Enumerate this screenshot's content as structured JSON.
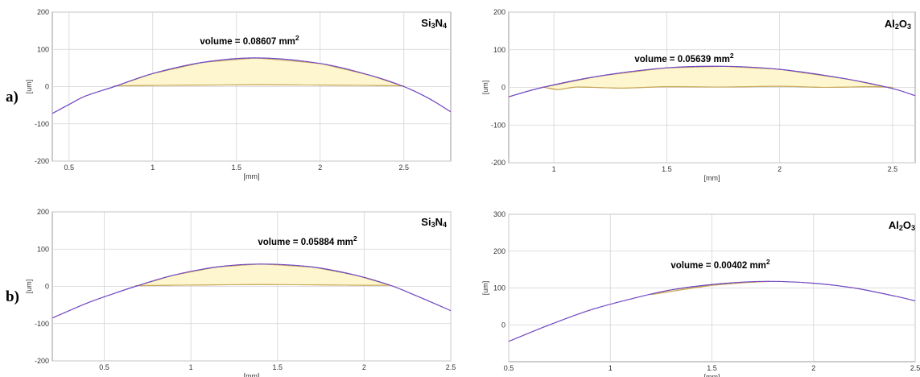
{
  "row_labels": [
    "a)",
    "b)"
  ],
  "colors": {
    "fill": "#fdf6cf",
    "outline": "#c8a85a",
    "profile_blue": "#4a4ad0",
    "profile_magenta": "#d040a0",
    "grid": "#d4d4d4",
    "frame": "#9a9a9a"
  },
  "chart_data": [
    {
      "type": "area",
      "row_label": "a)",
      "material_main": "Si",
      "material_sub1": "3",
      "material_mid": "N",
      "material_sub2": "4",
      "volume_label": "volume = 0.08607 mm",
      "volume_sup": "2",
      "xlabel": "[mm]",
      "ylabel": "[um]",
      "xlim": [
        0.4,
        2.78
      ],
      "ylim": [
        -200,
        200
      ],
      "xticks": [
        0.5,
        1,
        1.5,
        2,
        2.5
      ],
      "xtick_labels": [
        "0.5",
        "1",
        "1.5",
        "2",
        "2.5"
      ],
      "yticks": [
        -200,
        -100,
        0,
        100,
        200
      ],
      "ytick_labels": [
        "-200",
        "-100",
        "0",
        "100",
        "200"
      ],
      "profile_x": [
        0.4,
        0.5,
        0.6,
        0.77,
        1.0,
        1.3,
        1.62,
        2.0,
        2.3,
        2.5,
        2.65,
        2.78
      ],
      "profile_y": [
        -72,
        -48,
        -25,
        0,
        35,
        65,
        77,
        62,
        30,
        0,
        -32,
        -68
      ],
      "wear_x": [
        0.77,
        1.0,
        1.3,
        1.62,
        2.0,
        2.3,
        2.5
      ],
      "wear_y": [
        2,
        3,
        4,
        5,
        4,
        3,
        2
      ],
      "grid": true
    },
    {
      "type": "area",
      "row_label": "a)",
      "material_main": "Al",
      "material_sub1": "2",
      "material_mid": "O",
      "material_sub2": "3",
      "volume_label": "volume = 0.05639 mm",
      "volume_sup": "2",
      "xlabel": "[mm]",
      "ylabel": "[um]",
      "xlim": [
        0.8,
        2.6
      ],
      "ylim": [
        -200,
        200
      ],
      "xticks": [
        1,
        1.5,
        2,
        2.5
      ],
      "xtick_labels": [
        "1",
        "1.5",
        "2",
        "2.5"
      ],
      "yticks": [
        -200,
        -100,
        0,
        100,
        200
      ],
      "ytick_labels": [
        "-200",
        "-100",
        "0",
        "100",
        "200"
      ],
      "profile_x": [
        0.8,
        0.95,
        1.2,
        1.5,
        1.75,
        2.0,
        2.3,
        2.5,
        2.6
      ],
      "profile_y": [
        -25,
        0,
        30,
        52,
        56,
        48,
        22,
        -3,
        -22
      ],
      "wear_x": [
        0.95,
        1.02,
        1.1,
        1.3,
        1.5,
        1.75,
        2.0,
        2.2,
        2.4,
        2.5
      ],
      "wear_y": [
        1,
        -6,
        1,
        -2,
        2,
        1,
        3,
        0,
        2,
        0
      ],
      "grid": true
    },
    {
      "type": "area",
      "row_label": "b)",
      "material_main": "Si",
      "material_sub1": "3",
      "material_mid": "N",
      "material_sub2": "4",
      "volume_label": "volume = 0.05884 mm",
      "volume_sup": "2",
      "xlabel": "[mm]",
      "ylabel": "[um]",
      "xlim": [
        0.2,
        2.5
      ],
      "ylim": [
        -200,
        200
      ],
      "xticks": [
        0.5,
        1,
        1.5,
        2,
        2.5
      ],
      "xtick_labels": [
        "0.5",
        "1",
        "1.5",
        "2",
        "2.5"
      ],
      "yticks": [
        -200,
        -100,
        0,
        100,
        200
      ],
      "ytick_labels": [
        "-200",
        "-100",
        "0",
        "100",
        "200"
      ],
      "profile_x": [
        0.2,
        0.4,
        0.55,
        0.68,
        0.9,
        1.15,
        1.4,
        1.7,
        1.95,
        2.15,
        2.3,
        2.5
      ],
      "profile_y": [
        -85,
        -45,
        -20,
        0,
        30,
        52,
        60,
        52,
        30,
        3,
        -25,
        -65
      ],
      "wear_x": [
        0.68,
        0.9,
        1.15,
        1.4,
        1.7,
        1.95,
        2.15
      ],
      "wear_y": [
        2,
        3,
        4,
        5,
        4,
        3,
        3
      ],
      "grid": true
    },
    {
      "type": "area",
      "row_label": "b)",
      "material_main": "Al",
      "material_sub1": "2",
      "material_mid": "O",
      "material_sub2": "3",
      "volume_label": "volume = 0.00402 mm",
      "volume_sup": "2",
      "xlabel": "[mm]",
      "ylabel": "[um]",
      "xlim": [
        0.5,
        2.5
      ],
      "ylim": [
        -100,
        300
      ],
      "xticks": [
        0.5,
        1,
        1.5,
        2,
        2.5
      ],
      "xtick_labels": [
        "0.5",
        "1",
        "1.5",
        "2",
        "2.5"
      ],
      "yticks": [
        0,
        100,
        200,
        300
      ],
      "ytick_labels": [
        "0",
        "100",
        "200",
        "300"
      ],
      "profile_x": [
        0.5,
        0.7,
        0.9,
        1.1,
        1.3,
        1.55,
        1.78,
        2.0,
        2.2,
        2.4,
        2.5
      ],
      "profile_y": [
        -45,
        0,
        40,
        70,
        95,
        112,
        118,
        113,
        100,
        78,
        65
      ],
      "wear_x": [
        1.2,
        1.35,
        1.5,
        1.65,
        1.78
      ],
      "wear_y": [
        82,
        95,
        107,
        114,
        118
      ],
      "grid": true
    }
  ]
}
